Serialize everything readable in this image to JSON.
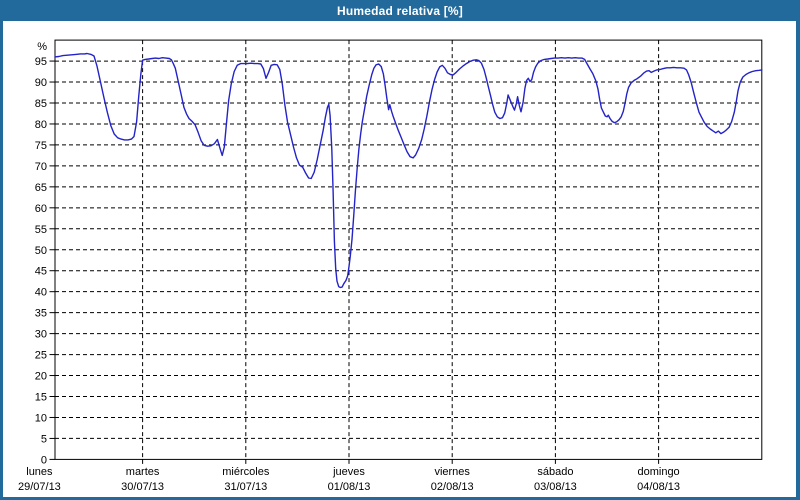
{
  "window": {
    "title": "Humedad relativa [%]"
  },
  "colors": {
    "frame_blue": "#236a9c",
    "title_text": "#ffffff",
    "plot_background": "#ffffff",
    "grid_black": "#000000",
    "series_blue": "#2323c8"
  },
  "chart_data": {
    "type": "line",
    "title": "Humedad relativa [%]",
    "y_unit_label": "%",
    "ylabel": "",
    "xlabel": "",
    "ylim": [
      0,
      100
    ],
    "grid": "dashed horizontal every 5%, dashed vertical at each day boundary",
    "legend_position": "none",
    "y_ticks": [
      0,
      5,
      10,
      15,
      20,
      25,
      30,
      35,
      40,
      45,
      50,
      55,
      60,
      65,
      70,
      75,
      80,
      85,
      90,
      95
    ],
    "x_days": [
      {
        "name": "lunes",
        "date": "29/07/13"
      },
      {
        "name": "martes",
        "date": "30/07/13"
      },
      {
        "name": "miércoles",
        "date": "31/07/13"
      },
      {
        "name": "jueves",
        "date": "01/08/13"
      },
      {
        "name": "viernes",
        "date": "02/08/13"
      },
      {
        "name": "sábado",
        "date": "03/08/13"
      },
      {
        "name": "domingo",
        "date": "04/08/13"
      }
    ],
    "series": [
      {
        "name": "Humedad relativa [%]",
        "color": "#2323c8",
        "x_unit": "hours since lunes 29/07/13 00:00",
        "points": [
          [
            3.6,
            96.0
          ],
          [
            4.5,
            96.1
          ],
          [
            5.5,
            96.3
          ],
          [
            6.5,
            96.4
          ],
          [
            7.5,
            96.5
          ],
          [
            8.5,
            96.6
          ],
          [
            9.5,
            96.7
          ],
          [
            10.5,
            96.7
          ],
          [
            11.1,
            96.8
          ],
          [
            12.0,
            96.6
          ],
          [
            12.7,
            96.2
          ],
          [
            13.4,
            93.8
          ],
          [
            14.2,
            90.0
          ],
          [
            15.0,
            86.3
          ],
          [
            15.8,
            82.8
          ],
          [
            16.6,
            79.6
          ],
          [
            17.4,
            77.6
          ],
          [
            18.2,
            76.7
          ],
          [
            19.0,
            76.4
          ],
          [
            19.8,
            76.2
          ],
          [
            20.6,
            76.2
          ],
          [
            21.4,
            76.4
          ],
          [
            22.0,
            77.0
          ],
          [
            22.6,
            80.5
          ],
          [
            23.1,
            86.5
          ],
          [
            23.6,
            92.0
          ],
          [
            24.0,
            95.2
          ],
          [
            24.6,
            95.4
          ],
          [
            25.4,
            95.5
          ],
          [
            26.2,
            95.6
          ],
          [
            27.0,
            95.7
          ],
          [
            27.8,
            95.6
          ],
          [
            28.6,
            95.8
          ],
          [
            29.4,
            95.7
          ],
          [
            30.2,
            95.6
          ],
          [
            30.7,
            95.3
          ],
          [
            31.1,
            94.5
          ],
          [
            31.6,
            93.3
          ],
          [
            32.2,
            90.5
          ],
          [
            32.9,
            87.3
          ],
          [
            33.6,
            84.0
          ],
          [
            34.2,
            82.4
          ],
          [
            34.8,
            81.3
          ],
          [
            35.5,
            80.6
          ],
          [
            36.2,
            79.8
          ],
          [
            36.9,
            78.0
          ],
          [
            37.6,
            76.0
          ],
          [
            38.3,
            74.9
          ],
          [
            39.1,
            74.7
          ],
          [
            39.9,
            74.8
          ],
          [
            40.7,
            75.3
          ],
          [
            41.4,
            76.3
          ],
          [
            42.0,
            74.2
          ],
          [
            42.5,
            72.5
          ],
          [
            43.0,
            74.5
          ],
          [
            43.5,
            80.0
          ],
          [
            44.0,
            85.5
          ],
          [
            44.6,
            89.5
          ],
          [
            45.3,
            92.5
          ],
          [
            46.0,
            94.0
          ],
          [
            46.8,
            94.4
          ],
          [
            47.6,
            94.4
          ],
          [
            48.4,
            94.4
          ],
          [
            49.2,
            94.5
          ],
          [
            50.0,
            94.4
          ],
          [
            50.8,
            94.4
          ],
          [
            51.5,
            94.3
          ],
          [
            52.1,
            93.2
          ],
          [
            52.7,
            90.9
          ],
          [
            53.3,
            92.3
          ],
          [
            53.9,
            94.0
          ],
          [
            54.6,
            94.2
          ],
          [
            55.3,
            94.1
          ],
          [
            55.9,
            93.0
          ],
          [
            56.5,
            89.5
          ],
          [
            57.1,
            84.5
          ],
          [
            57.7,
            80.5
          ],
          [
            58.4,
            77.5
          ],
          [
            59.1,
            74.5
          ],
          [
            59.8,
            71.9
          ],
          [
            60.5,
            70.2
          ],
          [
            61.2,
            69.7
          ],
          [
            61.9,
            68.3
          ],
          [
            62.6,
            67.1
          ],
          [
            63.2,
            67.0
          ],
          [
            63.9,
            68.5
          ],
          [
            64.6,
            71.5
          ],
          [
            65.3,
            75.0
          ],
          [
            66.0,
            78.5
          ],
          [
            66.5,
            81.5
          ],
          [
            67.0,
            84.0
          ],
          [
            67.3,
            84.7
          ],
          [
            67.6,
            82.0
          ],
          [
            68.0,
            74.0
          ],
          [
            68.3,
            64.0
          ],
          [
            68.6,
            52.0
          ],
          [
            68.9,
            45.5
          ],
          [
            69.2,
            42.5
          ],
          [
            69.6,
            41.2
          ],
          [
            70.0,
            41.0
          ],
          [
            70.4,
            41.1
          ],
          [
            70.8,
            41.9
          ],
          [
            71.3,
            42.7
          ],
          [
            71.7,
            43.8
          ],
          [
            72.0,
            46.0
          ],
          [
            72.3,
            48.5
          ],
          [
            72.7,
            52.5
          ],
          [
            73.1,
            58.0
          ],
          [
            73.5,
            64.0
          ],
          [
            73.9,
            69.5
          ],
          [
            74.3,
            74.0
          ],
          [
            74.7,
            77.5
          ],
          [
            75.1,
            80.5
          ],
          [
            75.6,
            83.5
          ],
          [
            76.1,
            86.5
          ],
          [
            76.7,
            89.3
          ],
          [
            77.3,
            91.8
          ],
          [
            77.8,
            93.3
          ],
          [
            78.3,
            94.1
          ],
          [
            78.9,
            94.3
          ],
          [
            79.5,
            93.7
          ],
          [
            80.0,
            91.9
          ],
          [
            80.4,
            89.2
          ],
          [
            80.8,
            86.2
          ],
          [
            81.2,
            83.4
          ],
          [
            81.5,
            84.6
          ],
          [
            81.9,
            83.0
          ],
          [
            82.3,
            81.7
          ],
          [
            82.9,
            80.0
          ],
          [
            83.5,
            78.4
          ],
          [
            84.1,
            76.9
          ],
          [
            84.8,
            75.1
          ],
          [
            85.5,
            73.4
          ],
          [
            86.2,
            72.2
          ],
          [
            86.9,
            71.9
          ],
          [
            87.5,
            72.6
          ],
          [
            88.2,
            74.2
          ],
          [
            88.9,
            76.3
          ],
          [
            89.5,
            78.8
          ],
          [
            90.1,
            81.8
          ],
          [
            90.7,
            85.2
          ],
          [
            91.3,
            88.2
          ],
          [
            91.9,
            90.6
          ],
          [
            92.5,
            92.4
          ],
          [
            93.1,
            93.6
          ],
          [
            93.7,
            94.0
          ],
          [
            94.3,
            93.3
          ],
          [
            94.9,
            92.2
          ],
          [
            95.6,
            91.8
          ],
          [
            96.2,
            91.7
          ],
          [
            96.9,
            92.3
          ],
          [
            97.7,
            93.1
          ],
          [
            98.5,
            93.8
          ],
          [
            99.3,
            94.4
          ],
          [
            100.1,
            94.9
          ],
          [
            100.9,
            95.2
          ],
          [
            101.6,
            95.3
          ],
          [
            102.2,
            95.1
          ],
          [
            102.8,
            94.5
          ],
          [
            103.4,
            93.0
          ],
          [
            103.9,
            91.0
          ],
          [
            104.4,
            88.9
          ],
          [
            104.9,
            86.8
          ],
          [
            105.4,
            84.7
          ],
          [
            105.9,
            82.8
          ],
          [
            106.5,
            81.7
          ],
          [
            107.1,
            81.3
          ],
          [
            107.7,
            81.5
          ],
          [
            108.2,
            82.6
          ],
          [
            108.7,
            85.0
          ],
          [
            109.0,
            86.9
          ],
          [
            109.6,
            85.4
          ],
          [
            110.2,
            83.9
          ],
          [
            110.5,
            83.3
          ],
          [
            110.9,
            84.8
          ],
          [
            111.2,
            86.5
          ],
          [
            111.6,
            84.4
          ],
          [
            112.0,
            82.9
          ],
          [
            112.5,
            85.2
          ],
          [
            112.9,
            88.5
          ],
          [
            113.3,
            90.4
          ],
          [
            113.7,
            90.9
          ],
          [
            114.1,
            90.1
          ],
          [
            114.5,
            90.6
          ],
          [
            114.9,
            92.3
          ],
          [
            115.4,
            93.6
          ],
          [
            115.9,
            94.5
          ],
          [
            116.6,
            95.1
          ],
          [
            117.4,
            95.4
          ],
          [
            118.2,
            95.5
          ],
          [
            119.0,
            95.6
          ],
          [
            119.8,
            95.7
          ],
          [
            120.6,
            95.7
          ],
          [
            121.4,
            95.8
          ],
          [
            122.2,
            95.7
          ],
          [
            123.0,
            95.8
          ],
          [
            123.8,
            95.7
          ],
          [
            124.6,
            95.8
          ],
          [
            125.4,
            95.7
          ],
          [
            126.2,
            95.7
          ],
          [
            126.8,
            95.4
          ],
          [
            127.4,
            94.3
          ],
          [
            128.0,
            93.2
          ],
          [
            128.7,
            92.0
          ],
          [
            129.4,
            90.3
          ],
          [
            129.9,
            88.3
          ],
          [
            130.3,
            85.8
          ],
          [
            130.7,
            83.8
          ],
          [
            131.2,
            82.7
          ],
          [
            131.6,
            81.9
          ],
          [
            132.0,
            81.7
          ],
          [
            132.3,
            82.1
          ],
          [
            132.7,
            81.3
          ],
          [
            133.2,
            80.6
          ],
          [
            133.7,
            80.3
          ],
          [
            134.2,
            80.5
          ],
          [
            134.8,
            81.0
          ],
          [
            135.3,
            81.7
          ],
          [
            135.8,
            83.0
          ],
          [
            136.2,
            85.0
          ],
          [
            136.6,
            87.2
          ],
          [
            137.0,
            88.7
          ],
          [
            137.6,
            89.8
          ],
          [
            138.3,
            90.4
          ],
          [
            139.0,
            90.8
          ],
          [
            139.8,
            91.4
          ],
          [
            140.5,
            92.1
          ],
          [
            141.2,
            92.6
          ],
          [
            141.8,
            92.7
          ],
          [
            142.3,
            92.3
          ],
          [
            142.9,
            92.6
          ],
          [
            143.6,
            92.9
          ],
          [
            144.3,
            93.0
          ],
          [
            145.1,
            93.2
          ],
          [
            145.9,
            93.4
          ],
          [
            146.7,
            93.4
          ],
          [
            147.5,
            93.5
          ],
          [
            148.3,
            93.4
          ],
          [
            149.1,
            93.4
          ],
          [
            149.9,
            93.3
          ],
          [
            150.5,
            92.9
          ],
          [
            151.0,
            91.7
          ],
          [
            151.6,
            89.8
          ],
          [
            152.2,
            87.3
          ],
          [
            152.8,
            85.0
          ],
          [
            153.4,
            82.8
          ],
          [
            154.0,
            81.6
          ],
          [
            154.6,
            80.4
          ],
          [
            155.3,
            79.4
          ],
          [
            156.0,
            78.8
          ],
          [
            156.7,
            78.3
          ],
          [
            157.3,
            77.9
          ],
          [
            157.9,
            78.3
          ],
          [
            158.5,
            77.7
          ],
          [
            159.2,
            78.1
          ],
          [
            159.8,
            78.6
          ],
          [
            160.4,
            79.2
          ],
          [
            161.0,
            80.6
          ],
          [
            161.6,
            82.8
          ],
          [
            162.1,
            85.5
          ],
          [
            162.5,
            88.0
          ],
          [
            163.0,
            90.0
          ],
          [
            163.6,
            91.2
          ],
          [
            164.3,
            91.8
          ],
          [
            165.0,
            92.2
          ],
          [
            165.8,
            92.5
          ],
          [
            166.6,
            92.7
          ],
          [
            167.4,
            92.8
          ],
          [
            168.0,
            92.9
          ]
        ]
      }
    ]
  }
}
